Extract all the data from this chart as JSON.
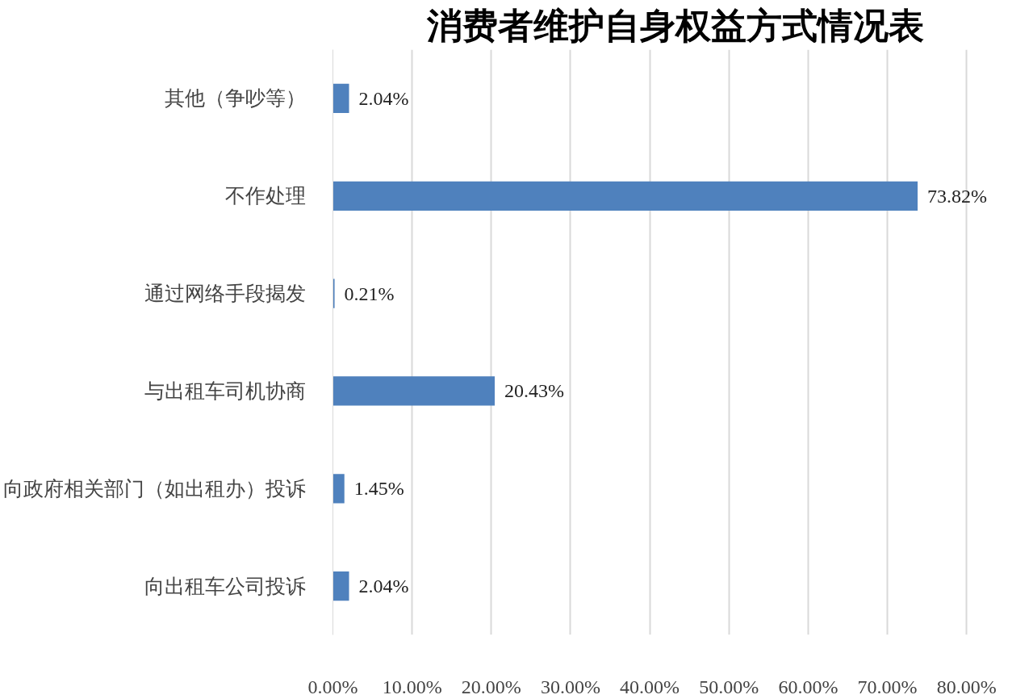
{
  "chart_data": {
    "type": "bar",
    "orientation": "horizontal",
    "title": "消费者维护自身权益方式情况表",
    "categories": [
      "其他（争吵等）",
      "不作处理",
      "通过网络手段揭发",
      "与出租车司机协商",
      "向政府相关部门（如出租办）投诉",
      "向出租车公司投诉"
    ],
    "values": [
      2.04,
      73.82,
      0.21,
      20.43,
      1.45,
      2.04
    ],
    "value_labels": [
      "2.04%",
      "73.82%",
      "0.21%",
      "20.43%",
      "1.45%",
      "2.04%"
    ],
    "color": "#4f81bd",
    "xlim": [
      0,
      80
    ],
    "xticks": [
      {
        "value": 0,
        "label": "0.00%"
      },
      {
        "value": 10,
        "label": "10.00%"
      },
      {
        "value": 20,
        "label": "20.00%"
      },
      {
        "value": 30,
        "label": "30.00%"
      },
      {
        "value": 40,
        "label": "40.00%"
      },
      {
        "value": 50,
        "label": "50.00%"
      },
      {
        "value": 60,
        "label": "60.00%"
      },
      {
        "value": 70,
        "label": "70.00%"
      },
      {
        "value": 80,
        "label": "80.00%"
      }
    ],
    "grid": "x"
  }
}
